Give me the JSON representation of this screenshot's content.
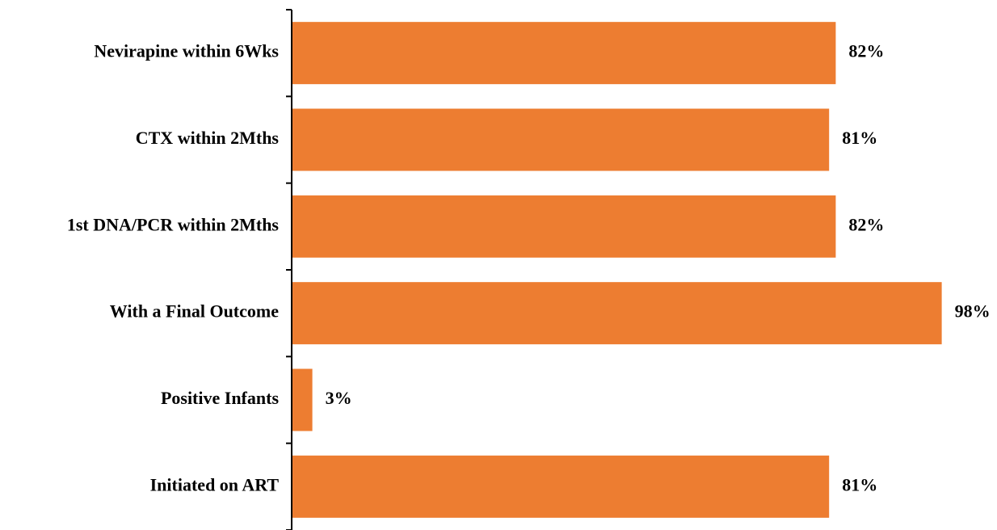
{
  "chart_data": {
    "type": "bar",
    "orientation": "horizontal",
    "categories": [
      "Nevirapine within 6Wks",
      "CTX within 2Mths",
      "1st DNA/PCR within 2Mths",
      "With a Final Outcome",
      "Positive Infants",
      "Initiated on ART"
    ],
    "values": [
      82,
      81,
      82,
      98,
      3,
      81
    ],
    "data_labels": [
      "82%",
      "81%",
      "82%",
      "98%",
      "3%",
      "81%"
    ],
    "unit": "%",
    "title": "",
    "xlabel": "",
    "ylabel": "",
    "xlim": [
      0,
      100
    ],
    "grid": false,
    "legend": "none",
    "bar_color": "#ED7D31"
  }
}
